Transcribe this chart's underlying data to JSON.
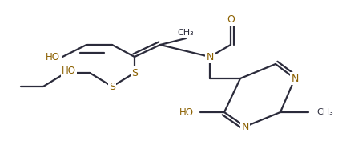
{
  "bg_color": "#ffffff",
  "line_color": "#2b2b3b",
  "heteroatom_color": "#8B6000",
  "bond_lw": 1.6,
  "figsize": [
    4.22,
    1.96
  ],
  "dpi": 100,
  "xlim": [
    0,
    422
  ],
  "ylim": [
    0,
    196
  ]
}
